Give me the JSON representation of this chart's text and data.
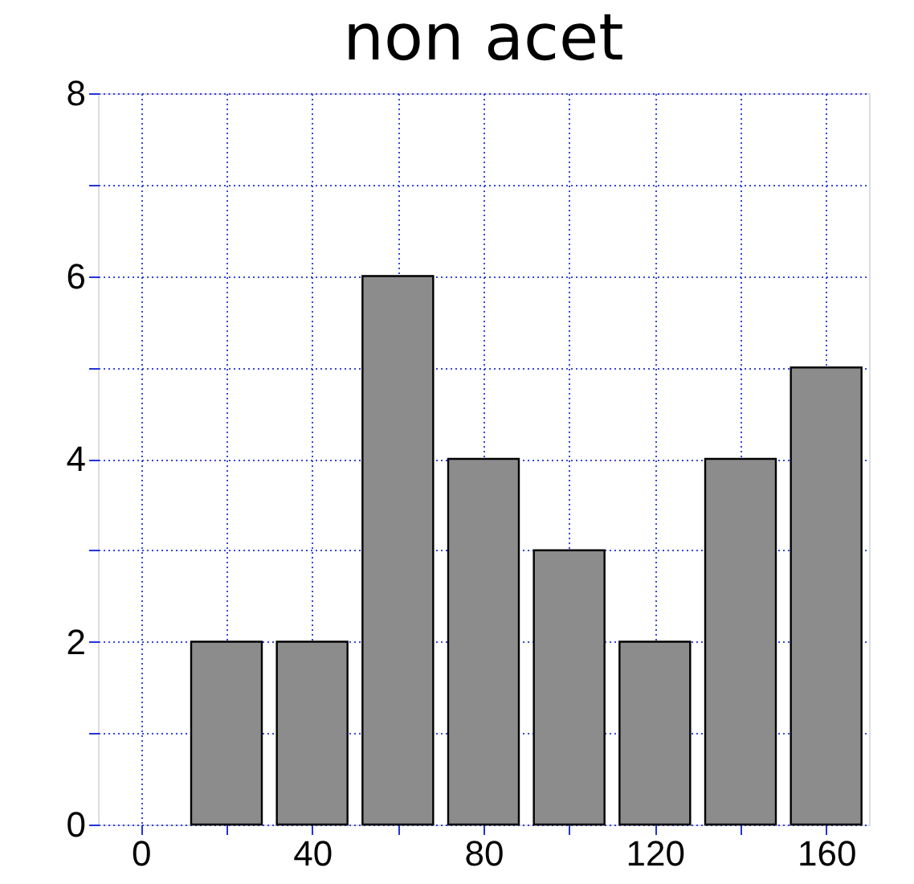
{
  "chart_data": {
    "type": "bar",
    "title": "non acet",
    "x": [
      20,
      40,
      60,
      80,
      100,
      120,
      140,
      160
    ],
    "values": [
      2,
      2,
      6,
      4,
      3,
      2,
      4,
      5
    ],
    "color": "#8c8c8c",
    "xlim": [
      -10,
      170
    ],
    "xticks": [
      0,
      {
        "value": 20,
        "label": null
      },
      40,
      {
        "value": 60,
        "label": null
      },
      80,
      {
        "value": 100,
        "label": null
      },
      120,
      {
        "value": 140,
        "label": null
      },
      160
    ],
    "ylim": [
      0,
      8
    ],
    "yticks": [
      0,
      {
        "value": 1,
        "label": null
      },
      2,
      {
        "value": 3,
        "label": null
      },
      4,
      {
        "value": 5,
        "label": null
      },
      6,
      {
        "value": 7,
        "label": null
      },
      8
    ],
    "grid": true
  }
}
